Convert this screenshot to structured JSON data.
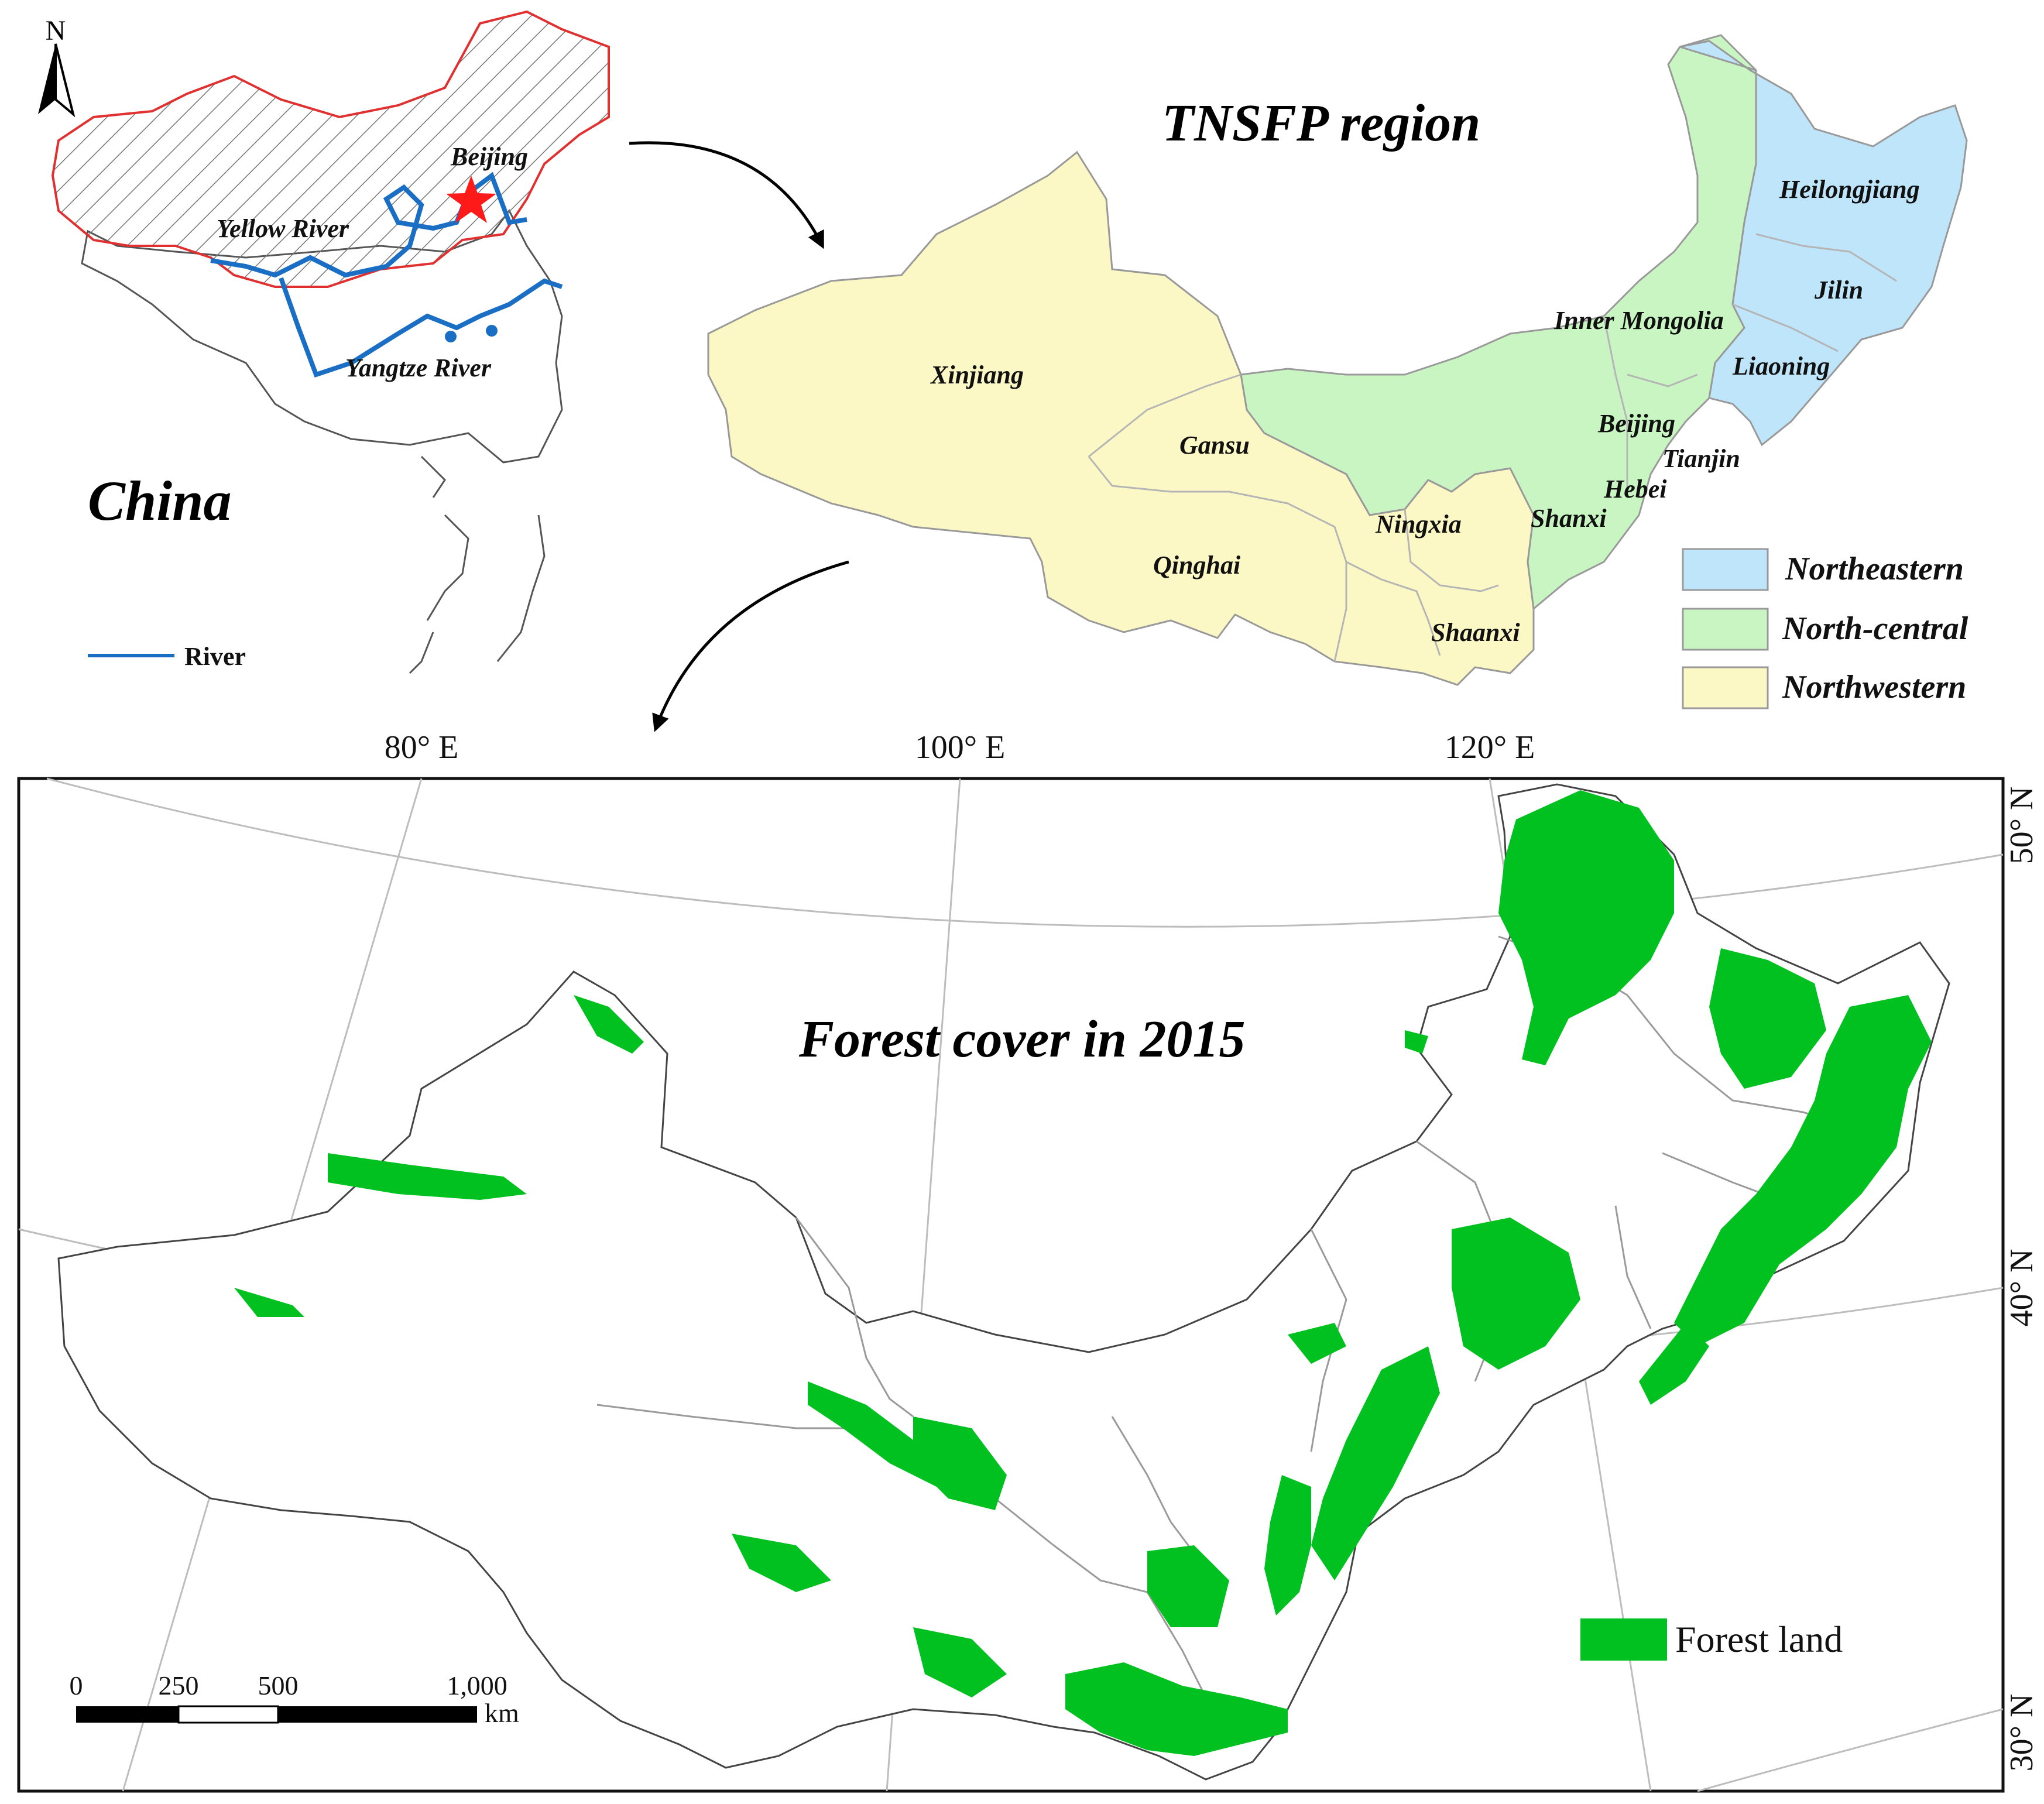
{
  "inset_china": {
    "north_label": "N",
    "title": "China",
    "city_label": "Beijing",
    "river_labels": [
      "Yellow River",
      "Yangtze River"
    ],
    "legend_label": "River",
    "colors": {
      "study_area_outline": "#e03030",
      "river": "#1a6fc4",
      "star": "#ff1a1a",
      "country_outline": "#555555"
    }
  },
  "region_map": {
    "title": "TNSFP region",
    "provinces": {
      "heilongjiang": "Heilongjiang",
      "jilin": "Jilin",
      "liaoning": "Liaoning",
      "inner_mongolia": "Inner Mongolia",
      "beijing": "Beijing",
      "tianjin": "Tianjin",
      "hebei": "Hebei",
      "shanxi": "Shanxi",
      "shaanxi": "Shaanxi",
      "ningxia": "Ningxia",
      "gansu": "Gansu",
      "qinghai": "Qinghai",
      "xinjiang": "Xinjiang"
    },
    "legend": [
      {
        "label": "Northeastern",
        "color": "#bfe5fb"
      },
      {
        "label": "North-central",
        "color": "#c9f5c3"
      },
      {
        "label": "Northwestern",
        "color": "#fcf8c5"
      }
    ]
  },
  "forest_map": {
    "title": "Forest cover in 2015",
    "longitude_labels": [
      "80° E",
      "100° E",
      "120° E"
    ],
    "latitude_labels": [
      "50° N",
      "40° N",
      "30° N"
    ],
    "legend_label": "Forest land",
    "forest_color": "#00c11f",
    "scale_bar": {
      "ticks": [
        "0",
        "250",
        "500",
        "1,000"
      ],
      "unit": "km"
    }
  }
}
